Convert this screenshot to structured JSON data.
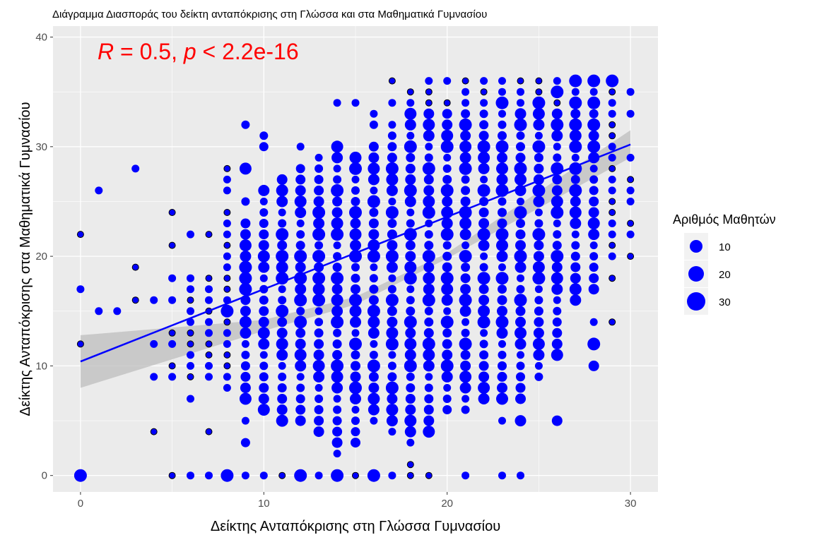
{
  "chart_data": {
    "type": "scatter",
    "title": "Διάγραμμα Διασποράς του δείκτη ανταπόκρισης στη Γλώσσα και στα Μαθηματικά Γυμνασίου",
    "xlabel": "Δείκτης Ανταπόκρισης στη Γλώσσα Γυμνασίου",
    "ylabel": "Δείκτης Ανταπόκρισης στα Μαθηματικά Γυμνασίου",
    "xlim": [
      -1.5,
      31.5
    ],
    "ylim": [
      -1.5,
      41
    ],
    "x_ticks": [
      0,
      10,
      20,
      30
    ],
    "y_ticks": [
      0,
      10,
      20,
      30,
      40
    ],
    "grid": true,
    "annotation": {
      "R_symbol": "R",
      "eq_r": " = 0.5, ",
      "p_symbol": "p",
      "eq_p": " < 2.2e-16"
    },
    "regression": {
      "x0": 0,
      "y0": 10.4,
      "x1": 30,
      "y1": 30.2,
      "ci_low_at_x0": 8.0,
      "ci_high_at_x0": 12.8,
      "ci_low_at_x1": 29.0,
      "ci_high_at_x1": 31.5
    },
    "legend": {
      "title": "Αριθμός Μαθητών",
      "position": "right",
      "entries": [
        {
          "label": "10",
          "value": 10
        },
        {
          "label": "20",
          "value": 20
        },
        {
          "label": "30",
          "value": 30
        }
      ]
    },
    "colors": {
      "points": "#0000ff",
      "panel": "#ebebeb",
      "grid": "#ffffff",
      "annotation": "#ff0000",
      "ribbon": "#bdbdbd"
    },
    "columns": [
      {
        "x": 0,
        "ys": [
          0,
          12,
          17,
          22
        ],
        "big": [
          0
        ]
      },
      {
        "x": 1,
        "ys": [
          15,
          26
        ],
        "big": []
      },
      {
        "x": 2,
        "ys": [
          15
        ],
        "big": []
      },
      {
        "x": 3,
        "ys": [
          16,
          19,
          28
        ],
        "big": []
      },
      {
        "x": 4,
        "ys": [
          4,
          9,
          12,
          16
        ],
        "big": []
      },
      {
        "x": 5,
        "ys": [
          0,
          9,
          10,
          12,
          13,
          16,
          18,
          21,
          24
        ],
        "big": []
      },
      {
        "x": 6,
        "ys": [
          0,
          7,
          9,
          10,
          11,
          12,
          13,
          14,
          15,
          16,
          17,
          18,
          22
        ],
        "big": []
      },
      {
        "x": 7,
        "ys": [
          0,
          4,
          9,
          10,
          11,
          12,
          13,
          14,
          15,
          16,
          17,
          18,
          22
        ],
        "big": []
      },
      {
        "x": 8,
        "ys": [
          0,
          8,
          9,
          10,
          11,
          12,
          13,
          14,
          15,
          16,
          17,
          18,
          19,
          20,
          21,
          22,
          23,
          24,
          26,
          27,
          28
        ],
        "big": [
          0,
          15
        ]
      },
      {
        "x": 9,
        "ys": [
          0,
          3,
          5,
          7,
          8,
          9,
          10,
          11,
          12,
          13,
          14,
          15,
          16,
          17,
          18,
          19,
          20,
          21,
          22,
          23,
          25,
          28,
          32
        ],
        "big": [
          17,
          18,
          19
        ]
      },
      {
        "x": 10,
        "yr": [
          6,
          26
        ],
        "extra": [
          0,
          30,
          31
        ],
        "big": []
      },
      {
        "x": 11,
        "yr": [
          5,
          27
        ],
        "extra": [
          0
        ],
        "big": [
          15,
          18,
          20,
          22
        ]
      },
      {
        "x": 12,
        "yr": [
          5,
          28
        ],
        "extra": [
          0,
          30
        ],
        "big": [
          0,
          14,
          16,
          18,
          20
        ]
      },
      {
        "x": 13,
        "yr": [
          4,
          29
        ],
        "extra": [
          0
        ],
        "big": [
          16,
          18,
          20,
          22,
          24
        ]
      },
      {
        "x": 14,
        "yr": [
          2,
          30
        ],
        "extra": [
          0,
          34
        ],
        "big": [
          0,
          10,
          14,
          18,
          22,
          26
        ]
      },
      {
        "x": 15,
        "yr": [
          3,
          29
        ],
        "extra": [
          0,
          34
        ],
        "big": [
          8,
          12,
          16,
          20,
          24,
          28
        ]
      },
      {
        "x": 16,
        "yr": [
          5,
          30
        ],
        "extra": [
          0,
          32,
          33
        ],
        "big": [
          0,
          10,
          15,
          20,
          25
        ]
      },
      {
        "x": 17,
        "yr": [
          4,
          32
        ],
        "extra": [
          0,
          34,
          36
        ],
        "big": [
          8,
          12,
          16,
          20,
          24,
          28
        ]
      },
      {
        "x": 18,
        "yr": [
          3,
          33
        ],
        "extra": [
          0,
          1,
          34,
          35
        ],
        "big": [
          10,
          14,
          18,
          22,
          26,
          30
        ]
      },
      {
        "x": 19,
        "yr": [
          4,
          34
        ],
        "extra": [
          0,
          35,
          36
        ],
        "big": [
          12,
          16,
          20,
          24,
          28
        ]
      },
      {
        "x": 20,
        "yr": [
          6,
          34
        ],
        "extra": [
          36
        ],
        "big": [
          10,
          14,
          18,
          22,
          26,
          30
        ]
      },
      {
        "x": 21,
        "yr": [
          6,
          34
        ],
        "extra": [
          0,
          35,
          36
        ],
        "big": [
          12,
          16,
          20,
          24,
          28,
          32
        ]
      },
      {
        "x": 22,
        "yr": [
          7,
          34
        ],
        "extra": [
          35,
          36
        ],
        "big": [
          14,
          18,
          22,
          26,
          30
        ]
      },
      {
        "x": 23,
        "yr": [
          7,
          35
        ],
        "extra": [
          0,
          5,
          36
        ],
        "big": [
          14,
          18,
          22,
          26,
          30,
          34
        ]
      },
      {
        "x": 24,
        "yr": [
          8,
          35
        ],
        "extra": [
          0,
          5,
          7,
          36
        ],
        "big": [
          16,
          20,
          24,
          28,
          32
        ]
      },
      {
        "x": 25,
        "yr": [
          9,
          35
        ],
        "extra": [
          36
        ],
        "big": [
          18,
          22,
          26,
          30,
          34
        ]
      },
      {
        "x": 26,
        "yr": [
          11,
          34
        ],
        "extra": [
          5,
          35,
          36
        ],
        "big": [
          20,
          24,
          28,
          32,
          35
        ]
      },
      {
        "x": 27,
        "yr": [
          16,
          36
        ],
        "extra": [],
        "big": [
          26,
          28,
          30,
          32,
          34,
          36
        ]
      },
      {
        "x": 28,
        "yr": [
          17,
          36
        ],
        "extra": [
          10,
          12,
          14
        ],
        "big": [
          12,
          30,
          32,
          34,
          36
        ]
      },
      {
        "x": 29,
        "ys": [
          14,
          18,
          20,
          21,
          22,
          23,
          24,
          25,
          26,
          27,
          28,
          29,
          30,
          31,
          32,
          33,
          34,
          35,
          36
        ],
        "big": [
          36
        ]
      },
      {
        "x": 30,
        "ys": [
          20,
          22,
          23,
          25,
          26,
          27,
          29,
          33,
          35
        ],
        "big": []
      }
    ]
  }
}
